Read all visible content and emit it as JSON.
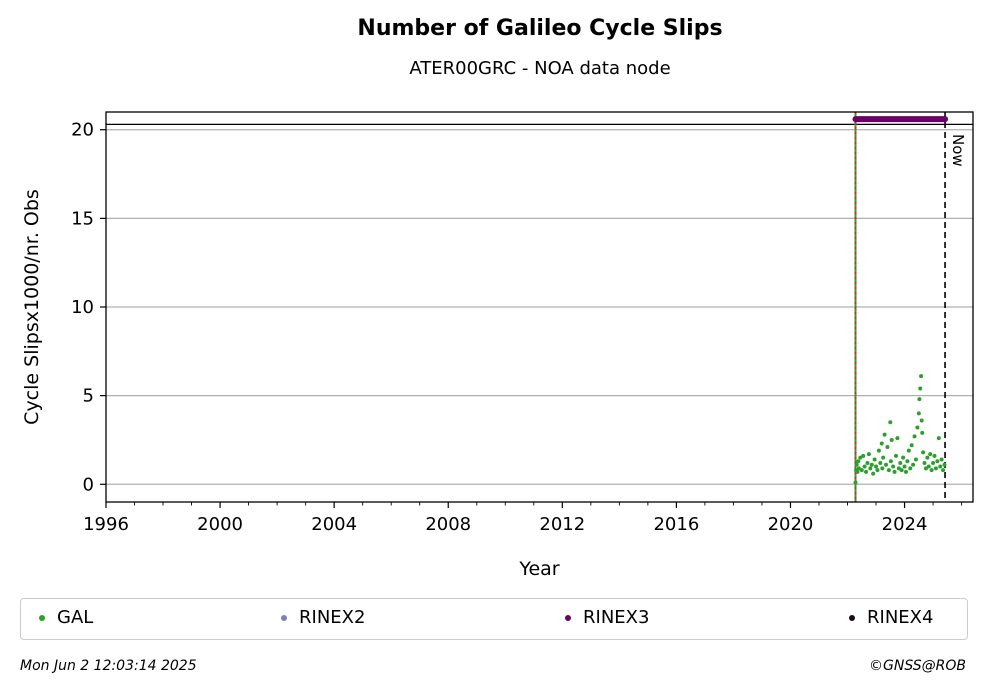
{
  "chart_data": {
    "type": "scatter",
    "title": "Number of Galileo Cycle Slips",
    "subtitle": "ATER00GRC - NOA data node",
    "xlabel": "Year",
    "ylabel": "Cycle Slipsx1000/nr. Obs",
    "xlim": [
      1996.0,
      2026.4
    ],
    "ylim": [
      -1.0,
      21.0
    ],
    "x_ticks": [
      1996,
      2000,
      2004,
      2008,
      2012,
      2016,
      2020,
      2024
    ],
    "y_ticks": [
      0,
      5,
      10,
      15,
      20
    ],
    "grid": "horizontal",
    "reference_line_y": 20.3,
    "now_line": {
      "x": 2025.42,
      "label": "Now"
    },
    "start_line_x": 2022.28,
    "series": [
      {
        "name": "GAL",
        "color": "#2ca02c",
        "points": [
          [
            2022.28,
            0.1
          ],
          [
            2022.3,
            0.8
          ],
          [
            2022.32,
            1.1
          ],
          [
            2022.35,
            0.7
          ],
          [
            2022.38,
            1.3
          ],
          [
            2022.4,
            0.9
          ],
          [
            2022.45,
            1.5
          ],
          [
            2022.5,
            0.8
          ],
          [
            2022.55,
            1.6
          ],
          [
            2022.6,
            1.0
          ],
          [
            2022.65,
            0.7
          ],
          [
            2022.7,
            1.2
          ],
          [
            2022.75,
            1.7
          ],
          [
            2022.8,
            0.9
          ],
          [
            2022.85,
            1.1
          ],
          [
            2022.9,
            0.6
          ],
          [
            2022.95,
            1.4
          ],
          [
            2023.0,
            1.0
          ],
          [
            2023.05,
            0.8
          ],
          [
            2023.1,
            1.9
          ],
          [
            2023.15,
            1.2
          ],
          [
            2023.2,
            2.3
          ],
          [
            2023.22,
            0.9
          ],
          [
            2023.25,
            1.5
          ],
          [
            2023.3,
            2.8
          ],
          [
            2023.35,
            1.1
          ],
          [
            2023.4,
            2.1
          ],
          [
            2023.45,
            0.8
          ],
          [
            2023.5,
            3.5
          ],
          [
            2023.52,
            1.3
          ],
          [
            2023.55,
            2.5
          ],
          [
            2023.6,
            1.0
          ],
          [
            2023.65,
            0.7
          ],
          [
            2023.7,
            1.6
          ],
          [
            2023.75,
            2.6
          ],
          [
            2023.8,
            0.9
          ],
          [
            2023.85,
            1.2
          ],
          [
            2023.9,
            0.8
          ],
          [
            2023.95,
            1.5
          ],
          [
            2024.0,
            1.0
          ],
          [
            2024.05,
            0.7
          ],
          [
            2024.1,
            1.3
          ],
          [
            2024.15,
            1.9
          ],
          [
            2024.2,
            0.9
          ],
          [
            2024.25,
            2.2
          ],
          [
            2024.3,
            1.1
          ],
          [
            2024.35,
            2.7
          ],
          [
            2024.4,
            1.4
          ],
          [
            2024.45,
            3.2
          ],
          [
            2024.5,
            4.0
          ],
          [
            2024.52,
            4.8
          ],
          [
            2024.55,
            5.4
          ],
          [
            2024.58,
            6.1
          ],
          [
            2024.6,
            3.6
          ],
          [
            2024.62,
            2.9
          ],
          [
            2024.65,
            1.8
          ],
          [
            2024.7,
            1.2
          ],
          [
            2024.75,
            0.9
          ],
          [
            2024.8,
            1.5
          ],
          [
            2024.85,
            1.0
          ],
          [
            2024.9,
            1.7
          ],
          [
            2024.95,
            0.8
          ],
          [
            2025.0,
            1.2
          ],
          [
            2025.05,
            1.6
          ],
          [
            2025.1,
            0.9
          ],
          [
            2025.15,
            1.3
          ],
          [
            2025.2,
            2.6
          ],
          [
            2025.25,
            1.0
          ],
          [
            2025.3,
            1.4
          ],
          [
            2025.35,
            0.8
          ],
          [
            2025.4,
            1.1
          ]
        ]
      },
      {
        "name": "RINEX3",
        "color": "#6a006a",
        "x_range": [
          2022.28,
          2025.42
        ],
        "y": 20.6
      }
    ]
  },
  "legend": {
    "items": [
      {
        "label": "GAL",
        "color": "#2ca02c"
      },
      {
        "label": "RINEX2",
        "color": "#7f7fbf"
      },
      {
        "label": "RINEX3",
        "color": "#6a006a"
      },
      {
        "label": "RINEX4",
        "color": "#1a0a1a"
      }
    ]
  },
  "footer": {
    "timestamp": "Mon Jun  2 12:03:14 2025",
    "credit": "©GNSS@ROB"
  }
}
